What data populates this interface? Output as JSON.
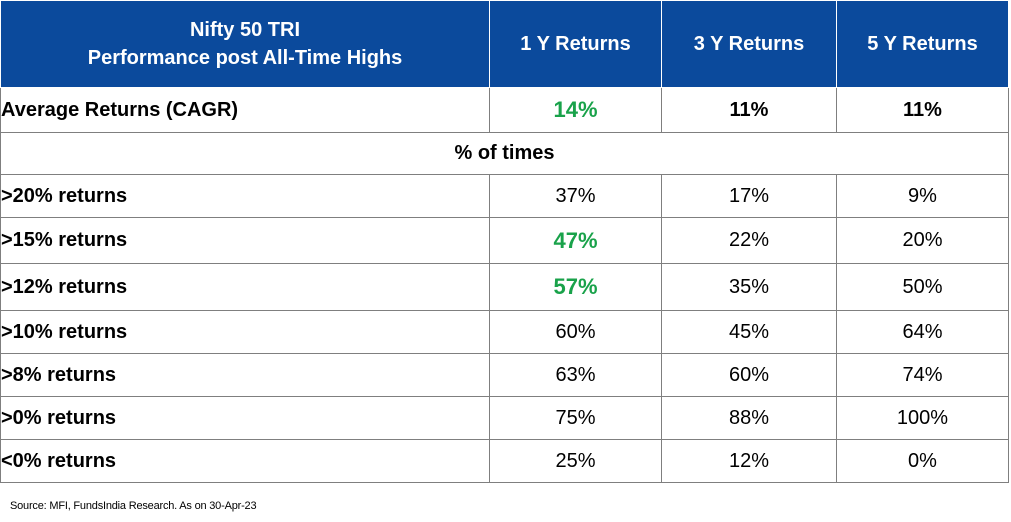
{
  "table": {
    "header": {
      "title_line1": "Nifty 50 TRI",
      "title_line2": "Performance post All-Time Highs",
      "columns": [
        "1 Y Returns",
        "3 Y Returns",
        "5 Y Returns"
      ]
    },
    "average": {
      "label": "Average Returns (CAGR)",
      "values": [
        "14%",
        "11%",
        "11%"
      ]
    },
    "section_label": "% of times",
    "rows": [
      {
        "label": ">20% returns",
        "values": [
          "37%",
          "17%",
          "9%"
        ]
      },
      {
        "label": ">15% returns",
        "values": [
          "47%",
          "22%",
          "20%"
        ]
      },
      {
        "label": ">12% returns",
        "values": [
          "57%",
          "35%",
          "50%"
        ]
      },
      {
        "label": ">10% returns",
        "values": [
          "60%",
          "45%",
          "64%"
        ]
      },
      {
        "label": ">8% returns",
        "values": [
          "63%",
          "60%",
          "74%"
        ]
      },
      {
        "label": ">0% returns",
        "values": [
          "75%",
          "88%",
          "100%"
        ]
      },
      {
        "label": "<0% returns",
        "values": [
          "25%",
          "12%",
          "0%"
        ]
      }
    ]
  },
  "source_note": "Source: MFI, FundsIndia Research. As on 30-Apr-23",
  "colors": {
    "header_bg": "#0b4a9c",
    "highlight_green": "#19a24a",
    "border": "#7f7f7f"
  }
}
